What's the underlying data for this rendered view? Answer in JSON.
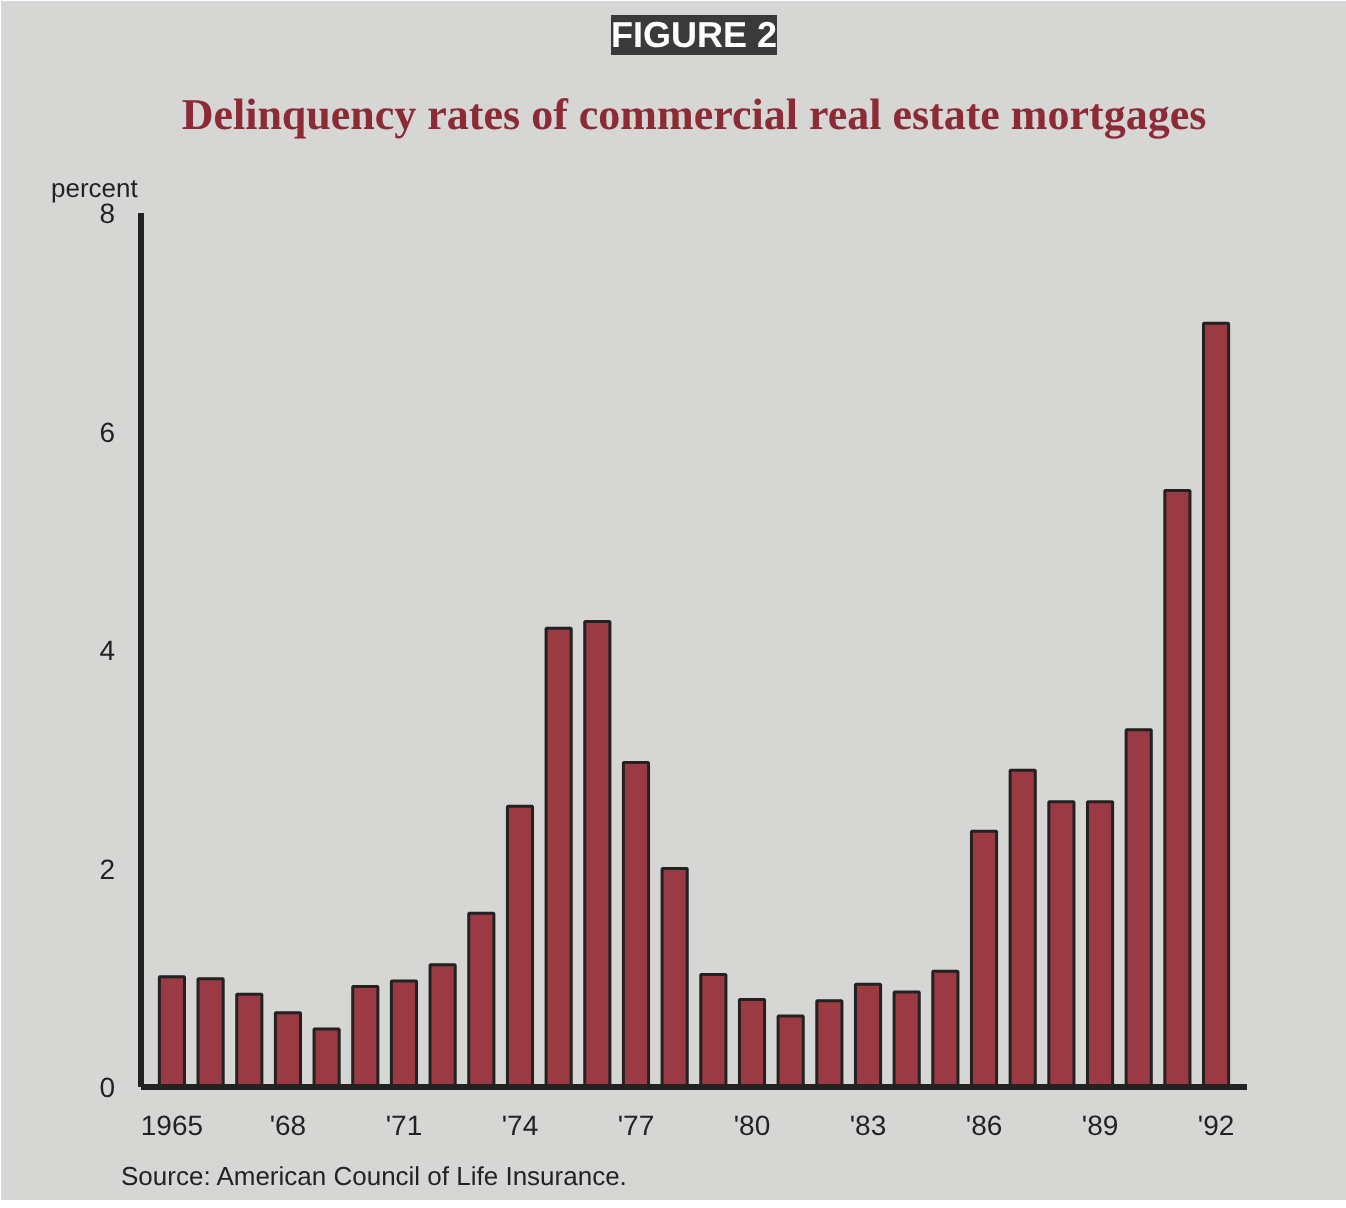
{
  "chart_data": {
    "type": "bar",
    "title": "FIGURE 2",
    "subtitle": "Delinquency rates of commercial real estate mortgages",
    "ylabel": "percent",
    "categories": [
      "1965",
      null,
      null,
      "'68",
      null,
      null,
      "'71",
      null,
      null,
      "'74",
      null,
      null,
      "'77",
      null,
      null,
      "'80",
      null,
      null,
      "'83",
      null,
      null,
      "'86",
      null,
      null,
      "'89",
      null,
      null,
      "'92"
    ],
    "values": [
      1.01,
      0.99,
      0.85,
      0.68,
      0.53,
      0.92,
      0.97,
      1.12,
      1.59,
      2.57,
      4.2,
      4.26,
      2.97,
      2.0,
      1.03,
      0.8,
      0.65,
      0.79,
      0.94,
      0.87,
      1.06,
      2.34,
      2.9,
      2.61,
      2.61,
      3.27,
      5.46,
      6.99
    ],
    "color": "#9b3a42",
    "ylim": [
      0,
      8
    ],
    "yticks": [
      0,
      2,
      4,
      6,
      8
    ],
    "grid": false,
    "annotations": [
      "Source: American Council of Life Insurance."
    ]
  }
}
